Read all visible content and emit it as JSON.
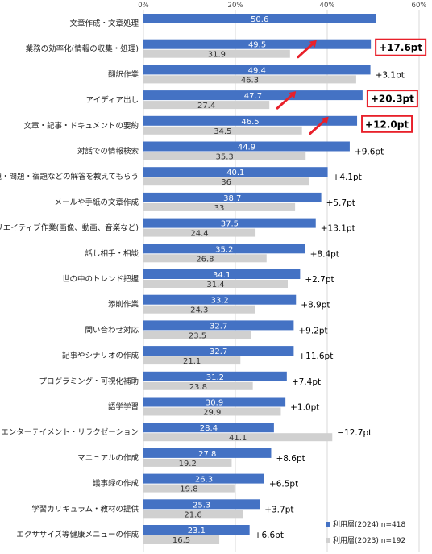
{
  "chart_data": {
    "type": "bar",
    "orientation": "horizontal",
    "xlim": [
      0,
      60
    ],
    "xticks": [
      "0%",
      "20%",
      "40%",
      "60%"
    ],
    "categories": [
      "文章作成・文章処理",
      "業務の効率化(情報の収集・処理)",
      "翻訳作業",
      "アイディア出し",
      "文章・記事・ドキュメントの要約",
      "対話での情報検索",
      "課題・問題・宿題などの解答を教えてもらう",
      "メールや手紙の文章作成",
      "クリエイティブ作業(画像、動画、音楽など)",
      "話し相手・相談",
      "世の中のトレンド把握",
      "添削作業",
      "問い合わせ対応",
      "記事やシナリオの作成",
      "プログラミング・可視化補助",
      "語学学習",
      "エンターテイメント・リラクゼーション",
      "マニュアルの作成",
      "議事録の作成",
      "学習カリキュラム・教材の提供",
      "エクササイズ等健康メニューの作成"
    ],
    "series": [
      {
        "name": "利用層(2024) n=418",
        "color": "#4472c4",
        "values": [
          50.6,
          49.5,
          49.4,
          47.7,
          46.5,
          44.9,
          40.1,
          38.7,
          37.5,
          35.2,
          34.1,
          33.2,
          32.7,
          32.7,
          31.2,
          30.9,
          28.4,
          27.8,
          26.3,
          25.3,
          23.1
        ]
      },
      {
        "name": "利用層(2023) n=192",
        "color": "#d0d0d0",
        "values": [
          null,
          31.9,
          46.3,
          27.4,
          34.5,
          35.3,
          36,
          33,
          24.4,
          26.8,
          31.4,
          24.3,
          23.5,
          21.1,
          23.8,
          29.9,
          41.1,
          19.2,
          19.8,
          21.6,
          16.5
        ]
      }
    ],
    "differences": [
      "",
      "+17.6pt",
      "+3.1pt",
      "+20.3pt",
      "+12.0pt",
      "+9.6pt",
      "+4.1pt",
      "+5.7pt",
      "+13.1pt",
      "+8.4pt",
      "+2.7pt",
      "+8.9pt",
      "+9.2pt",
      "+11.6pt",
      "+7.4pt",
      "+1.0pt",
      "−12.7pt",
      "+8.6pt",
      "+6.5pt",
      "+3.7pt",
      "+6.6pt"
    ],
    "highlighted": [
      1,
      3,
      4
    ],
    "highlight_color": "#e8202a",
    "legend_position": "bottom-right"
  }
}
